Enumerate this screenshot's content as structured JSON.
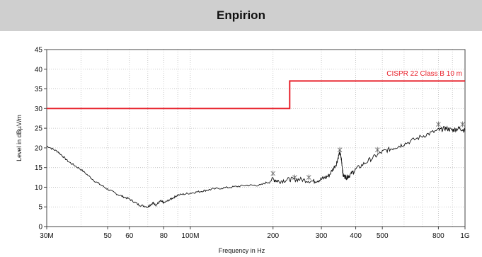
{
  "header": {
    "title": "Enpirion"
  },
  "colors": {
    "limit": "#e8202a",
    "trace": "#111111",
    "grid": "#bdbdbd",
    "header_bg": "#cfcfcf"
  },
  "chart_data": {
    "type": "line",
    "title": "",
    "xlabel": "Frequency in Hz",
    "ylabel": "Level in dBµV/m",
    "xscale": "log",
    "xlim": [
      30,
      1000
    ],
    "ylim": [
      0,
      45
    ],
    "grid": true,
    "y_ticks": [
      0,
      5,
      10,
      15,
      20,
      25,
      30,
      35,
      40,
      45
    ],
    "x_ticks": [
      {
        "value": 30,
        "label": "30M"
      },
      {
        "value": 50,
        "label": "50"
      },
      {
        "value": 60,
        "label": "60"
      },
      {
        "value": 80,
        "label": "80"
      },
      {
        "value": 100,
        "label": "100M"
      },
      {
        "value": 200,
        "label": "200"
      },
      {
        "value": 300,
        "label": "300"
      },
      {
        "value": 400,
        "label": "400"
      },
      {
        "value": 500,
        "label": "500"
      },
      {
        "value": 800,
        "label": "800"
      },
      {
        "value": 1000,
        "label": "1G"
      }
    ],
    "series": [
      {
        "name": "CISPR 22 Class B 10 m",
        "kind": "limit",
        "x": [
          30,
          230,
          230,
          1000
        ],
        "y": [
          30,
          30,
          37,
          37
        ]
      },
      {
        "kind": "measurement",
        "x": [
          30,
          33,
          36,
          40,
          45,
          50,
          55,
          60,
          65,
          70,
          73,
          75,
          78,
          80,
          85,
          90,
          100,
          110,
          120,
          140,
          160,
          180,
          200,
          210,
          230,
          250,
          280,
          300,
          320,
          340,
          350,
          355,
          360,
          370,
          380,
          400,
          450,
          500,
          550,
          600,
          700,
          800,
          850,
          900,
          950,
          1000
        ],
        "y": [
          20.5,
          19,
          16.5,
          14.5,
          11.5,
          9.5,
          8,
          7,
          5.5,
          5,
          6,
          5.5,
          6.5,
          6,
          7,
          8,
          8.5,
          9,
          9.5,
          10,
          10.5,
          10.5,
          12,
          11.5,
          12,
          12,
          11.5,
          12,
          13,
          16,
          19,
          17,
          13,
          12.5,
          13,
          14.5,
          17,
          19,
          20,
          21,
          23,
          24.5,
          25,
          24.5,
          25,
          24.5
        ]
      }
    ],
    "peak_markers": [
      {
        "x": 200,
        "y": 13.5
      },
      {
        "x": 240,
        "y": 12.5
      },
      {
        "x": 270,
        "y": 12.5
      },
      {
        "x": 350,
        "y": 19.5
      },
      {
        "x": 480,
        "y": 19.5
      },
      {
        "x": 800,
        "y": 26
      },
      {
        "x": 980,
        "y": 26
      }
    ]
  }
}
